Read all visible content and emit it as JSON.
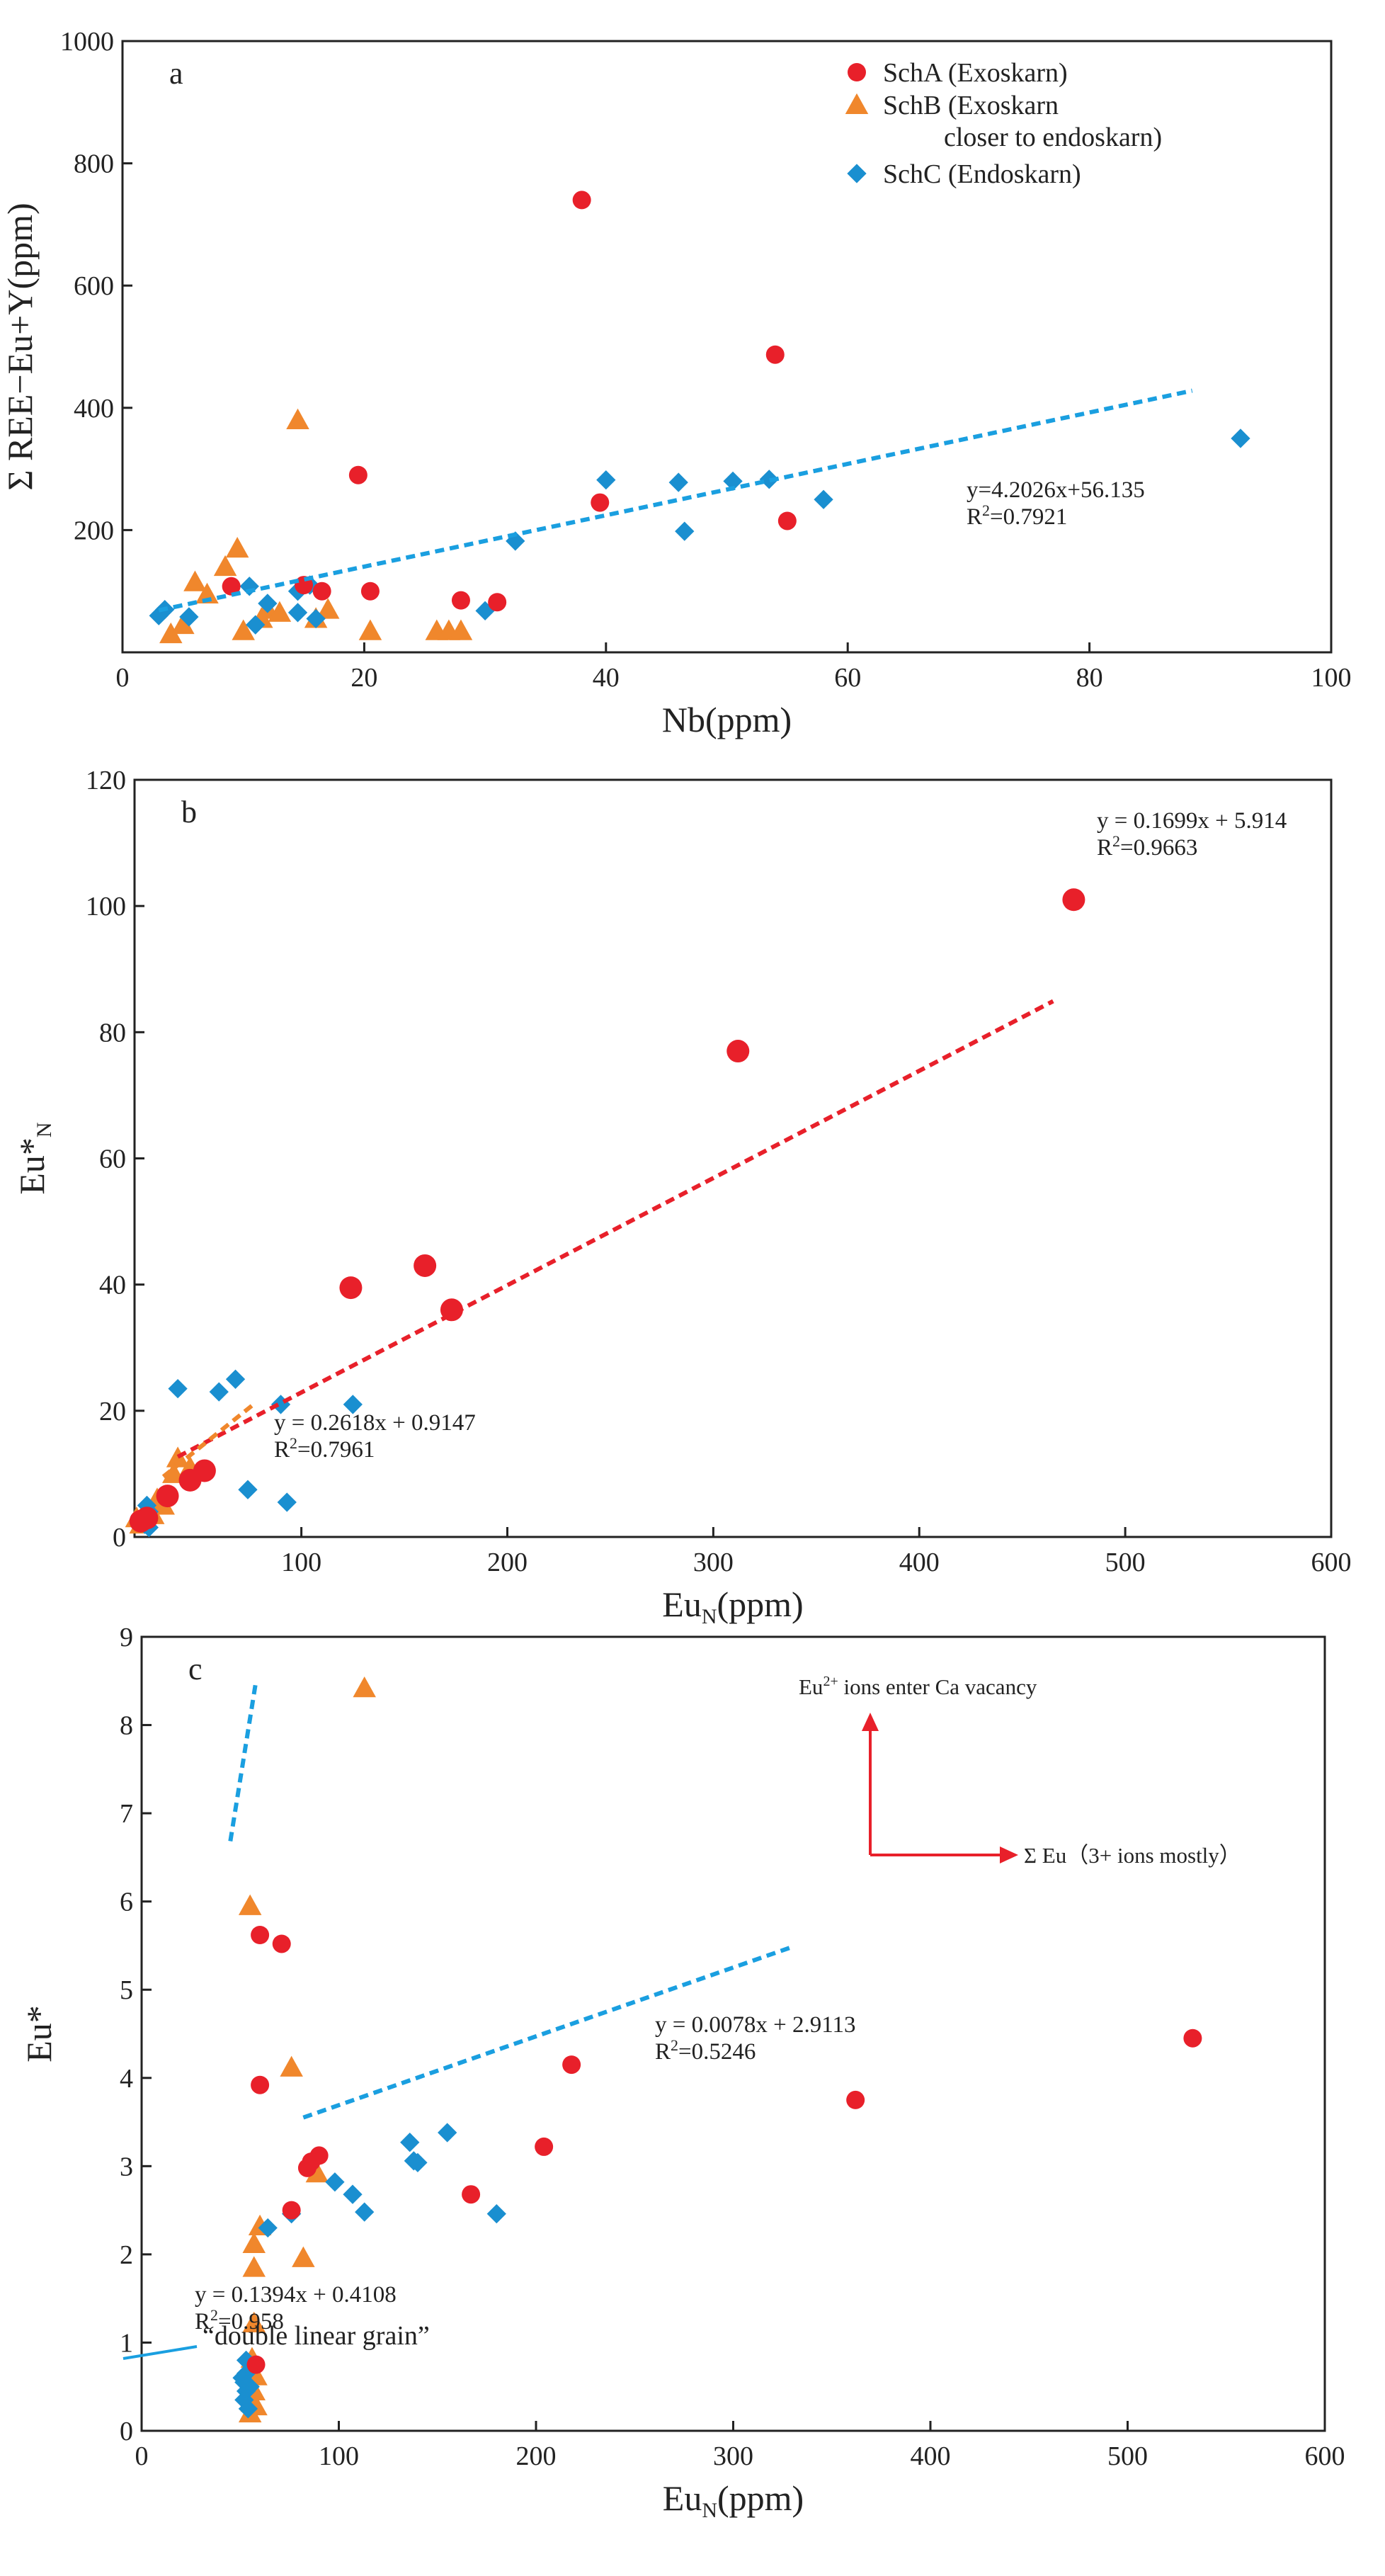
{
  "legend": {
    "entries": [
      {
        "series": "SchA",
        "label": "SchA (Exoskarn)",
        "label2": ""
      },
      {
        "series": "SchB",
        "label": "SchB (Exoskarn",
        "label2": "closer to endoskarn)"
      },
      {
        "series": "SchC",
        "label": "SchC (Endoskarn)",
        "label2": ""
      }
    ]
  },
  "colors": {
    "SchA": "#e8202a",
    "SchB": "#f0872c",
    "SchC": "#1a8fd0",
    "fitA": "#e8202a",
    "fitB": "#f0872c",
    "fitC": "#1a9fe0",
    "arrow": "#e8202a"
  },
  "chart_data": [
    {
      "type": "scatter",
      "panel": "a",
      "xlabel": "Nb(ppm)",
      "ylabel": "Σ REE−Eu+Y(ppm)",
      "xlim": [
        0,
        100
      ],
      "ylim": [
        0,
        1000
      ],
      "xticks": [
        0,
        20,
        40,
        60,
        80,
        100
      ],
      "xtick_labels": [
        "0",
        "20",
        "40",
        "60",
        "80",
        "100"
      ],
      "yticks": [
        200,
        400,
        600,
        800,
        1000
      ],
      "ytick_labels": [
        "200",
        "400",
        "600",
        "800",
        "1000"
      ],
      "series": [
        {
          "name": "SchA",
          "marker": "circle",
          "points": [
            [
              38,
              740
            ],
            [
              54,
              487
            ],
            [
              55,
              215
            ],
            [
              19.5,
              290
            ],
            [
              39.5,
              245
            ],
            [
              9,
              108
            ],
            [
              15,
              110
            ],
            [
              16.5,
              100
            ],
            [
              20.5,
              100
            ],
            [
              28,
              85
            ],
            [
              31,
              82
            ]
          ]
        },
        {
          "name": "SchB",
          "marker": "triangle",
          "points": [
            [
              14.5,
              380
            ],
            [
              9.5,
              170
            ],
            [
              8.5,
              140
            ],
            [
              6,
              115
            ],
            [
              7,
              95
            ],
            [
              12,
              70
            ],
            [
              13,
              65
            ],
            [
              17,
              70
            ],
            [
              10,
              35
            ],
            [
              4,
              30
            ],
            [
              5,
              45
            ],
            [
              20.5,
              35
            ],
            [
              26,
              35
            ],
            [
              27,
              35
            ],
            [
              28,
              35
            ],
            [
              16,
              55
            ],
            [
              11.5,
              55
            ]
          ]
        },
        {
          "name": "SchC",
          "marker": "diamond",
          "points": [
            [
              92.5,
              350
            ],
            [
              40,
              282
            ],
            [
              46,
              278
            ],
            [
              50.5,
              280
            ],
            [
              53.5,
              283
            ],
            [
              58,
              250
            ],
            [
              46.5,
              198
            ],
            [
              32.5,
              182
            ],
            [
              30,
              68
            ],
            [
              15.5,
              110
            ],
            [
              10.5,
              108
            ],
            [
              14.5,
              100
            ],
            [
              12,
              80
            ],
            [
              3,
              60
            ],
            [
              3.5,
              70
            ],
            [
              5.5,
              58
            ],
            [
              16,
              55
            ],
            [
              14.5,
              65
            ],
            [
              11,
              45
            ]
          ]
        }
      ],
      "fits": [
        {
          "series": "SchC",
          "equation": "y=4.2026x+56.135",
          "r2": "R²=0.7921",
          "x_range": [
            3,
            88.5
          ]
        }
      ]
    },
    {
      "type": "scatter",
      "panel": "b",
      "xlabel": "Eu_N(ppm)",
      "ylabel": "Eu*_N",
      "xlim": [
        19,
        600
      ],
      "ylim": [
        0,
        120
      ],
      "xticks": [
        100,
        200,
        300,
        400,
        500,
        600
      ],
      "xtick_labels": [
        "100",
        "200",
        "300",
        "400",
        "500",
        "600"
      ],
      "yticks": [
        0,
        20,
        40,
        60,
        80,
        100,
        120
      ],
      "ytick_labels": [
        "0",
        "20",
        "40",
        "60",
        "80",
        "100",
        "120"
      ],
      "series": [
        {
          "name": "SchA",
          "marker": "circle",
          "points": [
            [
              475,
              101
            ],
            [
              312,
              77
            ],
            [
              160,
              43
            ],
            [
              124,
              39.5
            ],
            [
              173,
              36
            ],
            [
              53,
              10.5
            ],
            [
              46,
              9
            ],
            [
              35,
              6.5
            ],
            [
              22,
              2.5
            ],
            [
              25,
              3
            ]
          ]
        },
        {
          "name": "SchB",
          "marker": "triangle",
          "points": [
            [
              40,
              12.5
            ],
            [
              46,
              11
            ],
            [
              38,
              10
            ],
            [
              30,
              6
            ],
            [
              26,
              4
            ],
            [
              20,
              3
            ],
            [
              22,
              2
            ],
            [
              28,
              3.5
            ],
            [
              33,
              5
            ]
          ]
        },
        {
          "name": "SchC",
          "marker": "diamond",
          "points": [
            [
              40,
              23.5
            ],
            [
              60,
              23
            ],
            [
              68,
              25
            ],
            [
              90,
              21
            ],
            [
              125,
              21
            ],
            [
              74,
              7.5
            ],
            [
              93,
              5.5
            ],
            [
              25,
              5
            ],
            [
              26,
              4
            ],
            [
              25,
              3
            ],
            [
              24,
              2
            ],
            [
              26,
              1.5
            ]
          ]
        }
      ],
      "fits": [
        {
          "series": "SchA",
          "equation": "y = 0.1699x + 5.914",
          "r2": "R²=0.9663",
          "x_range": [
            40,
            465
          ]
        },
        {
          "series": "SchB",
          "equation": "y = 0.2618x + 0.9147",
          "r2": "R²=0.7961",
          "x_range": [
            33,
            76
          ]
        }
      ]
    },
    {
      "type": "scatter",
      "panel": "c",
      "xlabel": "Eu_N(ppm)",
      "ylabel": "Eu*",
      "xlim": [
        0,
        600
      ],
      "ylim": [
        0,
        9
      ],
      "xticks": [
        0,
        100,
        200,
        300,
        400,
        500,
        600
      ],
      "xtick_labels": [
        "0",
        "100",
        "200",
        "300",
        "400",
        "500",
        "600"
      ],
      "yticks": [
        0,
        1,
        2,
        3,
        4,
        5,
        6,
        7,
        8,
        9
      ],
      "ytick_labels": [
        "0",
        "1",
        "2",
        "3",
        "4",
        "5",
        "6",
        "7",
        "8",
        "9"
      ],
      "series": [
        {
          "name": "SchA",
          "marker": "circle",
          "points": [
            [
              533,
              4.45
            ],
            [
              362,
              3.75
            ],
            [
              218,
              4.15
            ],
            [
              204,
              3.22
            ],
            [
              167,
              2.68
            ],
            [
              90,
              3.12
            ],
            [
              86,
              3.05
            ],
            [
              84,
              2.98
            ],
            [
              76,
              2.5
            ],
            [
              60,
              5.62
            ],
            [
              71,
              5.52
            ],
            [
              60,
              3.92
            ],
            [
              58,
              0.75
            ]
          ]
        },
        {
          "name": "SchB",
          "marker": "triangle",
          "points": [
            [
              113,
              8.42
            ],
            [
              55,
              5.95
            ],
            [
              76,
              4.12
            ],
            [
              89,
              2.92
            ],
            [
              82,
              1.96
            ],
            [
              60,
              2.32
            ],
            [
              57,
              2.12
            ],
            [
              57,
              1.85
            ],
            [
              57,
              1.22
            ],
            [
              56,
              0.82
            ],
            [
              58,
              0.62
            ],
            [
              57,
              0.45
            ],
            [
              56,
              0.32
            ],
            [
              55,
              0.2
            ],
            [
              58,
              0.28
            ]
          ]
        },
        {
          "name": "SchC",
          "marker": "diamond",
          "points": [
            [
              155,
              3.38
            ],
            [
              136,
              3.27
            ],
            [
              138,
              3.06
            ],
            [
              140,
              3.04
            ],
            [
              98,
              2.82
            ],
            [
              107,
              2.68
            ],
            [
              113,
              2.48
            ],
            [
              180,
              2.46
            ],
            [
              76,
              2.46
            ],
            [
              64,
              2.3
            ],
            [
              53,
              0.8
            ],
            [
              53,
              0.65
            ],
            [
              52,
              0.55
            ],
            [
              53,
              0.45
            ],
            [
              52,
              0.35
            ],
            [
              54,
              0.25
            ],
            [
              55,
              0.5
            ],
            [
              51,
              0.6
            ]
          ]
        }
      ],
      "fits": [
        {
          "series": "SchC",
          "equation": "y = 0.0078x + 2.9113",
          "r2": "R²=0.5246",
          "x_range": [
            82,
            330
          ]
        },
        {
          "series": "SchC",
          "equation": "y = 0.1394x + 0.4108",
          "r2": "R²=0.958",
          "x_range": [
            45,
            58
          ]
        }
      ],
      "annotations": {
        "grain_label": "“double linear grain”",
        "arrow_up_label": "Eu²⁺ ions enter Ca vacancy",
        "arrow_right_label": "Σ Eu（3+ ions mostly）"
      }
    }
  ]
}
